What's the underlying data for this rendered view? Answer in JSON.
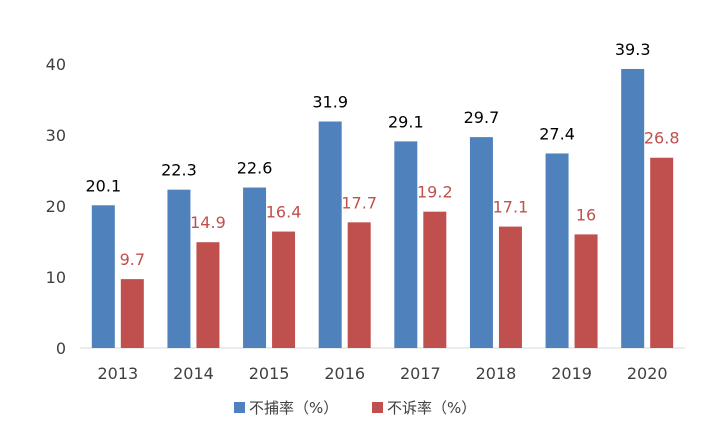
{
  "chart_data": {
    "type": "bar",
    "title": "",
    "xlabel": "",
    "ylabel": "",
    "categories": [
      "2013",
      "2014",
      "2015",
      "2016",
      "2017",
      "2018",
      "2019",
      "2020"
    ],
    "series": [
      {
        "name": "不捕率（%）",
        "values": [
          20.1,
          22.3,
          22.6,
          31.9,
          29.1,
          29.7,
          27.4,
          39.3
        ],
        "value_labels": [
          "20.1",
          "22.3",
          "22.6",
          "31.9",
          "29.1",
          "29.7",
          "27.4",
          "39.3"
        ],
        "color": "#4F81BD",
        "label_color": "#000000"
      },
      {
        "name": "不诉率（%）",
        "values": [
          9.7,
          14.9,
          16.4,
          17.7,
          19.2,
          17.1,
          16,
          26.8
        ],
        "value_labels": [
          "9.7",
          "14.9",
          "16.4",
          "17.7",
          "19.2",
          "17.1",
          "16",
          "26.8"
        ],
        "color": "#C0504D",
        "label_color": "#C0504D"
      }
    ],
    "ylim": [
      0,
      40
    ],
    "yticks": [
      0,
      10,
      20,
      30,
      40
    ],
    "grid": false,
    "legend_position": "bottom",
    "axis_color": "#D9D9D9",
    "tick_label_color": "#404040"
  }
}
